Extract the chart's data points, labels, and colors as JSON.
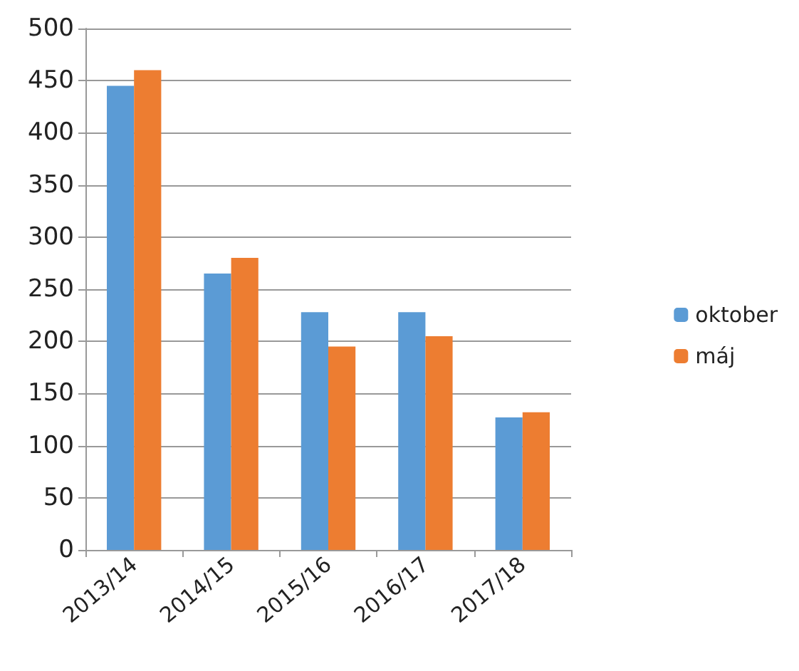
{
  "chart_data": {
    "type": "bar",
    "categories": [
      "2013/14",
      "2014/15",
      "2015/16",
      "2016/17",
      "2017/18"
    ],
    "series": [
      {
        "name": "oktober",
        "color": "#5b9bd5",
        "values": [
          445,
          265,
          228,
          228,
          127
        ]
      },
      {
        "name": "máj",
        "color": "#ed7d31",
        "values": [
          460,
          280,
          195,
          205,
          132
        ]
      }
    ],
    "ylim": [
      0,
      500
    ],
    "yticks": [
      0,
      50,
      100,
      150,
      200,
      250,
      300,
      350,
      400,
      450,
      500
    ],
    "grid": "y",
    "legend": "right"
  }
}
